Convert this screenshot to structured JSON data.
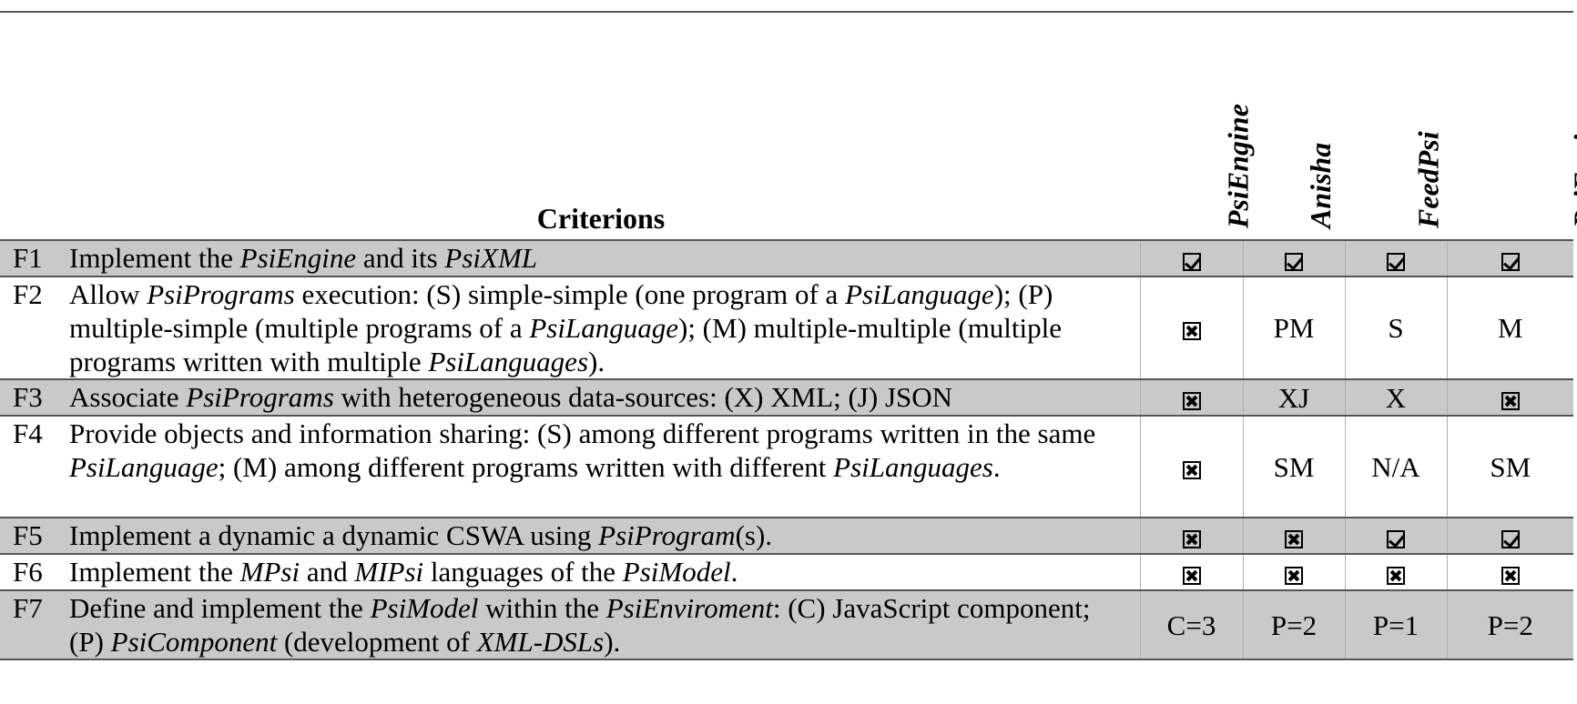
{
  "header": {
    "criterion_label": "Criterions",
    "columns": [
      "PsiEngine",
      "Anisha",
      "FeedPsi",
      "PsiEnviroment"
    ]
  },
  "rows": [
    {
      "id": "F1",
      "shaded": true,
      "description": [
        {
          "t": "Implement the ",
          "i": false
        },
        {
          "t": "PsiEngine",
          "i": true
        },
        {
          "t": " and its ",
          "i": false
        },
        {
          "t": "PsiXML",
          "i": true
        }
      ],
      "values": [
        {
          "type": "icon",
          "icon": "checkbox-checked-icon"
        },
        {
          "type": "icon",
          "icon": "checkbox-checked-icon"
        },
        {
          "type": "icon",
          "icon": "checkbox-checked-icon"
        },
        {
          "type": "icon",
          "icon": "checkbox-checked-icon"
        }
      ]
    },
    {
      "id": "F2",
      "shaded": false,
      "description": [
        {
          "t": "Allow ",
          "i": false
        },
        {
          "t": "PsiPrograms",
          "i": true
        },
        {
          "t": " execution: (S) simple-simple (one program of a ",
          "i": false
        },
        {
          "t": "PsiLanguage",
          "i": true
        },
        {
          "t": "); (P) multiple-simple (multiple programs of a ",
          "i": false
        },
        {
          "t": "PsiLanguage",
          "i": true
        },
        {
          "t": "); (M) multiple-multiple (multiple programs written with multiple ",
          "i": false
        },
        {
          "t": "PsiLanguages",
          "i": true
        },
        {
          "t": ").",
          "i": false
        }
      ],
      "values": [
        {
          "type": "icon",
          "icon": "checkbox-crossed-icon"
        },
        {
          "type": "text",
          "text": "PM"
        },
        {
          "type": "text",
          "text": "S"
        },
        {
          "type": "text",
          "text": "M"
        }
      ]
    },
    {
      "id": "F3",
      "shaded": true,
      "description": [
        {
          "t": "Associate ",
          "i": false
        },
        {
          "t": "PsiPrograms",
          "i": true
        },
        {
          "t": " with heterogeneous data-sources: (X) XML; (J) JSON",
          "i": false
        }
      ],
      "values": [
        {
          "type": "icon",
          "icon": "checkbox-crossed-icon"
        },
        {
          "type": "text",
          "text": "XJ"
        },
        {
          "type": "text",
          "text": "X"
        },
        {
          "type": "icon",
          "icon": "checkbox-crossed-icon"
        }
      ]
    },
    {
      "id": "F4",
      "shaded": false,
      "description": [
        {
          "t": "Provide objects and information sharing: (S) among different programs written in the same ",
          "i": false
        },
        {
          "t": "PsiLanguage",
          "i": true
        },
        {
          "t": "; (M) among different programs written with different ",
          "i": false
        },
        {
          "t": "PsiLanguages",
          "i": true
        },
        {
          "t": ".",
          "i": false
        }
      ],
      "values": [
        {
          "type": "icon",
          "icon": "checkbox-crossed-icon"
        },
        {
          "type": "text",
          "text": "SM"
        },
        {
          "type": "text",
          "text": "N/A"
        },
        {
          "type": "text",
          "text": "SM"
        }
      ]
    },
    {
      "id": "F5",
      "shaded": true,
      "description": [
        {
          "t": "Implement a dynamic a dynamic CSWA using ",
          "i": false
        },
        {
          "t": "PsiProgram",
          "i": true
        },
        {
          "t": "(s).",
          "i": false
        }
      ],
      "values": [
        {
          "type": "icon",
          "icon": "checkbox-crossed-icon"
        },
        {
          "type": "icon",
          "icon": "checkbox-crossed-icon"
        },
        {
          "type": "icon",
          "icon": "checkbox-checked-icon"
        },
        {
          "type": "icon",
          "icon": "checkbox-checked-icon"
        }
      ]
    },
    {
      "id": "F6",
      "shaded": false,
      "description": [
        {
          "t": "Implement the ",
          "i": false
        },
        {
          "t": "MPsi",
          "i": true
        },
        {
          "t": " and ",
          "i": false
        },
        {
          "t": "MIPsi",
          "i": true
        },
        {
          "t": " languages of the ",
          "i": false
        },
        {
          "t": "PsiModel",
          "i": true
        },
        {
          "t": ".",
          "i": false
        }
      ],
      "values": [
        {
          "type": "icon",
          "icon": "checkbox-crossed-icon"
        },
        {
          "type": "icon",
          "icon": "checkbox-crossed-icon"
        },
        {
          "type": "icon",
          "icon": "checkbox-crossed-icon"
        },
        {
          "type": "icon",
          "icon": "checkbox-crossed-icon"
        }
      ]
    },
    {
      "id": "F7",
      "shaded": true,
      "description": [
        {
          "t": "Define and implement the ",
          "i": false
        },
        {
          "t": "PsiModel",
          "i": true
        },
        {
          "t": " within the ",
          "i": false
        },
        {
          "t": "PsiEnviroment",
          "i": true
        },
        {
          "t": ": (C) JavaScript component; (P) ",
          "i": false
        },
        {
          "t": "PsiComponent",
          "i": true
        },
        {
          "t": " (development of ",
          "i": false
        },
        {
          "t": "XML-DSLs",
          "i": true
        },
        {
          "t": ").",
          "i": false
        }
      ],
      "values": [
        {
          "type": "text",
          "text": "C=3"
        },
        {
          "type": "text",
          "text": "P=2"
        },
        {
          "type": "text",
          "text": "P=1"
        },
        {
          "type": "text",
          "text": "P=2"
        }
      ]
    }
  ],
  "colors": {
    "shaded_row": "#c9c9c9",
    "rule": "#555555"
  }
}
